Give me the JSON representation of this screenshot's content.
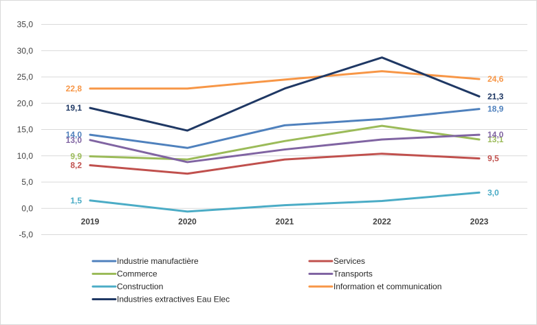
{
  "chart_data": {
    "type": "line",
    "categories": [
      "2019",
      "2020",
      "2021",
      "2022",
      "2023"
    ],
    "ylim": [
      -5,
      35
    ],
    "ytick_step": 5,
    "ytick_labels": [
      "-5,0",
      "0,0",
      "5,0",
      "10,0",
      "15,0",
      "20,0",
      "25,0",
      "30,0",
      "35,0"
    ],
    "grid": true,
    "legend_position": "bottom",
    "series": [
      {
        "name": "Industrie manufactière",
        "color": "#4f81bd",
        "values": [
          14.0,
          11.5,
          15.8,
          17.0,
          18.9
        ],
        "labels": [
          {
            "index": 0,
            "text": "14,0",
            "side": "left"
          },
          {
            "index": 4,
            "text": "18,9",
            "side": "right"
          }
        ]
      },
      {
        "name": "Services",
        "color": "#c0504d",
        "values": [
          8.2,
          6.6,
          9.3,
          10.4,
          9.5
        ],
        "labels": [
          {
            "index": 0,
            "text": "8,2",
            "side": "left"
          },
          {
            "index": 4,
            "text": "9,5",
            "side": "right"
          }
        ]
      },
      {
        "name": "Commerce",
        "color": "#9bbb59",
        "values": [
          9.9,
          9.3,
          12.8,
          15.7,
          13.1
        ],
        "labels": [
          {
            "index": 0,
            "text": "9,9",
            "side": "left"
          },
          {
            "index": 4,
            "text": "13,1",
            "side": "right"
          }
        ]
      },
      {
        "name": "Transports",
        "color": "#8064a2",
        "values": [
          13.0,
          8.8,
          11.2,
          13.1,
          14.0
        ],
        "labels": [
          {
            "index": 0,
            "text": "13,0",
            "side": "left"
          },
          {
            "index": 4,
            "text": "14,0",
            "side": "right"
          }
        ]
      },
      {
        "name": "Construction",
        "color": "#4bacc6",
        "values": [
          1.5,
          -0.6,
          0.6,
          1.4,
          3.0
        ],
        "labels": [
          {
            "index": 0,
            "text": "1,5",
            "side": "left"
          },
          {
            "index": 4,
            "text": "3,0",
            "side": "right"
          }
        ]
      },
      {
        "name": "Information et communication",
        "color": "#f79646",
        "values": [
          22.8,
          22.8,
          24.5,
          26.1,
          24.6
        ],
        "labels": [
          {
            "index": 0,
            "text": "22,8",
            "side": "left"
          },
          {
            "index": 4,
            "text": "24,6",
            "side": "right"
          }
        ]
      },
      {
        "name": "Industries extractives Eau Elec",
        "color": "#1f3864",
        "values": [
          19.1,
          14.8,
          22.8,
          28.7,
          21.3
        ],
        "labels": [
          {
            "index": 0,
            "text": "19,1",
            "side": "left"
          },
          {
            "index": 4,
            "text": "21,3",
            "side": "right"
          }
        ]
      }
    ],
    "legend_order": [
      0,
      1,
      2,
      3,
      4,
      5,
      6
    ]
  }
}
